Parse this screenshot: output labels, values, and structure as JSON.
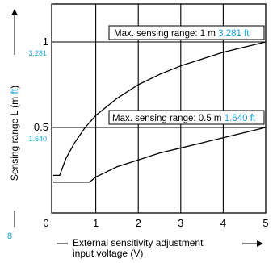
{
  "chart_data": {
    "type": "line",
    "xlabel_line1": "External sensitivity adjustment",
    "xlabel_line2": "input voltage (V)",
    "ylabel_main": "Sensing range L (m ",
    "ylabel_ft": "ft",
    "ylabel_close": ")",
    "xlim": [
      0,
      5
    ],
    "ylim": [
      0,
      1.1
    ],
    "x_ticks": [
      "0",
      "1",
      "2",
      "3",
      "4",
      "5"
    ],
    "y_ticks": [
      {
        "label": "0.5",
        "value": 0.5,
        "ft": "1.640"
      },
      {
        "label": "1",
        "value": 1.0,
        "ft": "3.281"
      }
    ],
    "corner_note": "8",
    "grid": true,
    "accent_color": "#1aa3d9",
    "series": [
      {
        "box_prefix": "Max. sensing range: 1 m ",
        "box_ft": "3.281 ft",
        "points": [
          [
            -0.1,
            0.22
          ],
          [
            0.15,
            0.22
          ],
          [
            0.3,
            0.32
          ],
          [
            0.5,
            0.41
          ],
          [
            0.75,
            0.5
          ],
          [
            1.0,
            0.57
          ],
          [
            1.5,
            0.67
          ],
          [
            2.0,
            0.75
          ],
          [
            2.5,
            0.81
          ],
          [
            3.0,
            0.86
          ],
          [
            3.5,
            0.9
          ],
          [
            4.0,
            0.94
          ],
          [
            4.5,
            0.97
          ],
          [
            5.0,
            1.0
          ]
        ]
      },
      {
        "box_prefix": "Max. sensing range: 0.5 m ",
        "box_ft": "1.640 ft",
        "points": [
          [
            -0.1,
            0.18
          ],
          [
            0.85,
            0.18
          ],
          [
            1.0,
            0.21
          ],
          [
            1.5,
            0.27
          ],
          [
            2.0,
            0.31
          ],
          [
            2.5,
            0.35
          ],
          [
            3.0,
            0.38
          ],
          [
            3.5,
            0.41
          ],
          [
            4.0,
            0.44
          ],
          [
            4.5,
            0.47
          ],
          [
            5.0,
            0.5
          ]
        ]
      }
    ]
  }
}
